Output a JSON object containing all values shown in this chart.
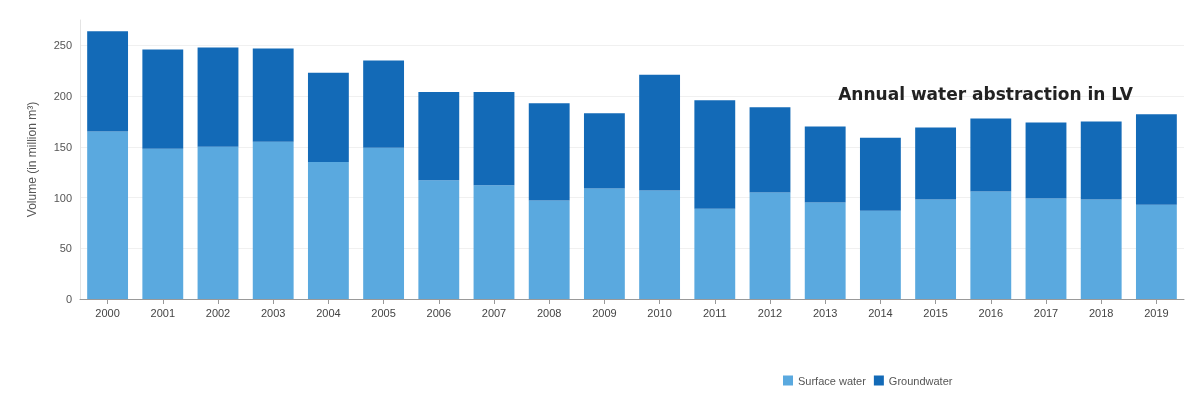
{
  "chart_data": {
    "type": "bar",
    "stacked": true,
    "title": "Annual water abstraction in LV",
    "ylabel": "Volume (in million m³)",
    "categories": [
      "2000",
      "2001",
      "2002",
      "2003",
      "2004",
      "2005",
      "2006",
      "2007",
      "2008",
      "2009",
      "2010",
      "2011",
      "2012",
      "2013",
      "2014",
      "2015",
      "2016",
      "2017",
      "2018",
      "2019"
    ],
    "series": [
      {
        "name": "Surface water",
        "color": "#5aa9df",
        "values": [
          165,
          148,
          150,
          155,
          135,
          149,
          117,
          112,
          97,
          109,
          107,
          89,
          105,
          95,
          87,
          98,
          106,
          99,
          98,
          93
        ]
      },
      {
        "name": "Groundwater",
        "color": "#136ab7",
        "values": [
          99,
          98,
          98,
          92,
          88,
          86,
          87,
          92,
          96,
          74,
          114,
          107,
          84,
          75,
          72,
          71,
          72,
          75,
          77,
          89
        ]
      }
    ],
    "ylim": [
      0,
      275
    ],
    "yticks": [
      0,
      50,
      100,
      150,
      200,
      250
    ],
    "grid": "y",
    "legend": "bottom"
  }
}
